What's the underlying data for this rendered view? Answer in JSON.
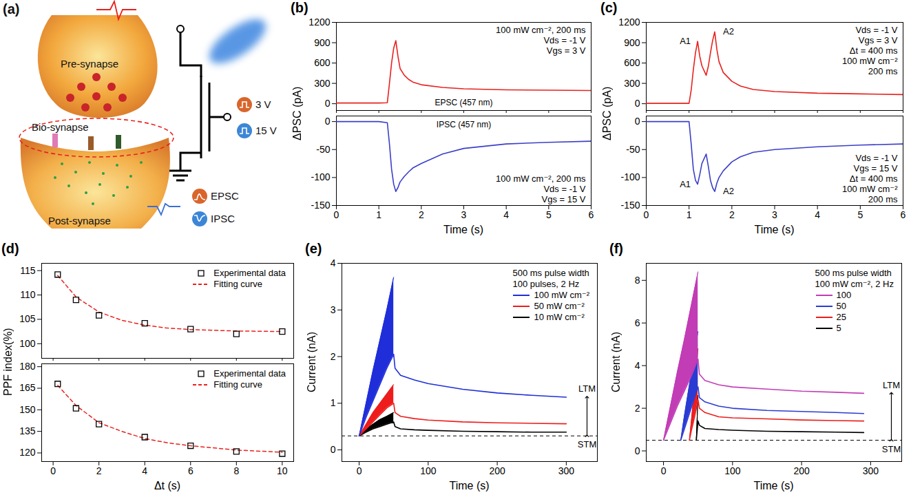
{
  "diagram": {
    "panel": "(a)",
    "labels": {
      "pre_synapse": "Pre-synapse",
      "bio_synapse": "Bio-synapse",
      "post_synapse": "Post-synapse"
    },
    "gate_pulses": [
      "3 V",
      "15 V"
    ],
    "outputs": [
      "EPSC",
      "IPSC"
    ]
  },
  "chart_data": [
    {
      "panel": "(b)",
      "type": "line",
      "xlabel": "Time (s)",
      "ylabel": "ΔPSC (pA)",
      "xlim": [
        0,
        6
      ],
      "xticks": [
        0,
        1,
        2,
        3,
        4,
        5,
        6
      ],
      "subplots": [
        {
          "type": "line",
          "color": "#e8211d",
          "tick_labels": "y",
          "ylim": [
            -100,
            1200
          ],
          "yticks": [
            0,
            300,
            600,
            900,
            1200
          ],
          "x": [
            0,
            0.5,
            1.0,
            1.2,
            1.25,
            1.3,
            1.35,
            1.4,
            1.45,
            1.5,
            1.6,
            1.7,
            1.8,
            2.0,
            2.5,
            3,
            4,
            5,
            6
          ],
          "values": [
            10,
            10,
            10,
            15,
            300,
            600,
            820,
            930,
            700,
            520,
            420,
            360,
            320,
            280,
            240,
            220,
            205,
            200,
            195
          ],
          "trace_label": "EPSC (457 nm)",
          "annotations": [
            "100 mW cm⁻², 200 ms",
            "Vds = -1 V",
            "Vgs = 3 V"
          ]
        },
        {
          "type": "line",
          "color": "#3b3fc7",
          "ylim": [
            -150,
            10
          ],
          "yticks": [
            -150,
            -100,
            -50,
            0
          ],
          "x": [
            0,
            0.5,
            1.0,
            1.2,
            1.25,
            1.3,
            1.35,
            1.4,
            1.45,
            1.5,
            1.6,
            1.7,
            1.8,
            2.0,
            2.5,
            3,
            4,
            5,
            6
          ],
          "values": [
            0,
            0,
            0,
            -2,
            -40,
            -85,
            -112,
            -125,
            -118,
            -108,
            -98,
            -90,
            -83,
            -75,
            -58,
            -48,
            -40,
            -37,
            -35
          ],
          "trace_label": "IPSC (457 nm)",
          "annotations": [
            "100 mW cm⁻², 200 ms",
            "Vds = -1 V",
            "Vgs = 15 V"
          ]
        }
      ]
    },
    {
      "panel": "(c)",
      "type": "line",
      "xlabel": "Time (s)",
      "ylabel": "ΔPSC (pA)",
      "xlim": [
        0,
        6
      ],
      "xticks": [
        0,
        1,
        2,
        3,
        4,
        5,
        6
      ],
      "subplots": [
        {
          "type": "line",
          "color": "#e8211d",
          "tick_labels": "y",
          "ylim": [
            -100,
            1200
          ],
          "yticks": [
            0,
            300,
            600,
            900,
            1200
          ],
          "x": [
            0,
            0.5,
            1.0,
            1.05,
            1.1,
            1.15,
            1.2,
            1.25,
            1.3,
            1.4,
            1.45,
            1.5,
            1.55,
            1.6,
            1.65,
            1.7,
            1.8,
            2.0,
            2.2,
            2.5,
            3,
            4,
            5,
            6
          ],
          "values": [
            5,
            5,
            5,
            200,
            500,
            750,
            920,
            700,
            560,
            420,
            550,
            750,
            930,
            1060,
            800,
            620,
            460,
            330,
            260,
            210,
            180,
            155,
            145,
            135
          ],
          "peak_labels": [
            "A1",
            "A2"
          ],
          "annotations": [
            "Vds = -1 V",
            "Vgs = 3 V",
            "Δt = 400 ms",
            "100 mW cm⁻²",
            "200 ms"
          ]
        },
        {
          "type": "line",
          "color": "#3b3fc7",
          "ylim": [
            -150,
            10
          ],
          "yticks": [
            -150,
            -100,
            -50,
            0
          ],
          "x": [
            0,
            0.5,
            1.0,
            1.05,
            1.1,
            1.15,
            1.2,
            1.25,
            1.3,
            1.4,
            1.45,
            1.5,
            1.55,
            1.6,
            1.65,
            1.7,
            1.8,
            2.0,
            2.2,
            2.5,
            3,
            4,
            5,
            6
          ],
          "values": [
            0,
            0,
            0,
            -40,
            -85,
            -105,
            -112,
            -95,
            -75,
            -58,
            -80,
            -105,
            -118,
            -125,
            -110,
            -100,
            -88,
            -72,
            -63,
            -55,
            -50,
            -45,
            -42,
            -40
          ],
          "peak_labels": [
            "A1",
            "A2"
          ],
          "annotations": [
            "Vds = -1 V",
            "Vgs = 15 V",
            "Δt = 400 ms",
            "100 mW cm⁻²",
            "200 ms"
          ]
        }
      ]
    },
    {
      "panel": "(d)",
      "type": "scatter",
      "xlabel": "Δt (s)",
      "ylabel": "PPF index(%)",
      "xlim": [
        -0.5,
        10.5
      ],
      "xticks": [
        0,
        2,
        4,
        6,
        8,
        10
      ],
      "legend": "top-right",
      "subplots": [
        {
          "tick_labels": "y",
          "ylim": [
            97,
            116.5
          ],
          "yticks": [
            100,
            105,
            110,
            115
          ],
          "series": [
            {
              "name": "Experimental data",
              "type": "scatter",
              "marker": "square",
              "color": "#000000",
              "x": [
                0.2,
                1,
                2,
                4,
                6,
                8,
                10
              ],
              "values": [
                114.2,
                109,
                105.8,
                104.2,
                103,
                102,
                102.5
              ]
            },
            {
              "name": "Fitting curve",
              "type": "line",
              "line_style": "dashed",
              "color": "#e8211d",
              "x": [
                0.2,
                1,
                2,
                3,
                4,
                5,
                6,
                8,
                10
              ],
              "values": [
                114,
                109.6,
                106.5,
                104.8,
                103.8,
                103.2,
                102.9,
                102.6,
                102.5
              ]
            }
          ]
        },
        {
          "ylim": [
            114,
            182
          ],
          "yticks": [
            120,
            135,
            150,
            165,
            180
          ],
          "series": [
            {
              "name": "Experimental data",
              "type": "scatter",
              "marker": "square",
              "color": "#000000",
              "x": [
                0.2,
                1,
                2,
                4,
                6,
                8,
                10
              ],
              "values": [
                168,
                151,
                140,
                131,
                125,
                121,
                119.5
              ]
            },
            {
              "name": "Fitting curve",
              "type": "line",
              "line_style": "dashed",
              "color": "#e8211d",
              "x": [
                0.2,
                1,
                2,
                3,
                4,
                5,
                6,
                8,
                10
              ],
              "values": [
                167,
                153,
                141,
                135,
                130,
                127,
                125,
                122,
                120.5
              ]
            }
          ]
        }
      ]
    },
    {
      "panel": "(e)",
      "type": "line",
      "xlabel": "Time (s)",
      "ylabel": "Current (nA)",
      "xlim": [
        -25,
        345
      ],
      "xticks": [
        0,
        100,
        200,
        300
      ],
      "ylim": [
        -0.25,
        4
      ],
      "yticks": [
        0,
        1,
        2,
        3,
        4
      ],
      "legend": "top-right",
      "legend_title": [
        "500 ms pulse width",
        "100 pulses, 2 Hz"
      ],
      "reference_line": 0.3,
      "range_labels": [
        "LTM",
        "STM"
      ],
      "series": [
        {
          "name": "100 mW cm⁻²",
          "color": "#1f2ed9",
          "x": [
            0,
            10,
            20,
            30,
            40,
            50,
            52,
            60,
            80,
            100,
            150,
            200,
            250,
            300
          ],
          "values": [
            0.3,
            0.7,
            1.05,
            1.4,
            1.75,
            2.05,
            1.75,
            1.6,
            1.5,
            1.42,
            1.3,
            1.22,
            1.17,
            1.13
          ],
          "peaks": [
            0.3,
            1.0,
            1.7,
            2.35,
            3.0,
            3.7,
            null,
            null,
            null,
            null,
            null,
            null,
            null,
            null
          ]
        },
        {
          "name": "50 mW cm⁻²",
          "color": "#ee1c1c",
          "x": [
            0,
            10,
            20,
            30,
            40,
            50,
            52,
            60,
            80,
            100,
            150,
            200,
            250,
            300
          ],
          "values": [
            0.3,
            0.45,
            0.6,
            0.75,
            0.9,
            1.0,
            0.8,
            0.72,
            0.67,
            0.64,
            0.6,
            0.58,
            0.57,
            0.56
          ],
          "peaks": [
            0.3,
            0.55,
            0.8,
            1.0,
            1.2,
            1.4,
            null,
            null,
            null,
            null,
            null,
            null,
            null,
            null
          ]
        },
        {
          "name": "10 mW cm⁻²",
          "color": "#000000",
          "x": [
            0,
            10,
            20,
            30,
            40,
            50,
            52,
            60,
            80,
            100,
            150,
            200,
            250,
            300
          ],
          "values": [
            0.3,
            0.38,
            0.45,
            0.5,
            0.55,
            0.6,
            0.5,
            0.45,
            0.43,
            0.42,
            0.4,
            0.39,
            0.38,
            0.38
          ],
          "peaks": [
            0.3,
            0.45,
            0.55,
            0.65,
            0.72,
            0.8,
            null,
            null,
            null,
            null,
            null,
            null,
            null,
            null
          ]
        }
      ]
    },
    {
      "panel": "(f)",
      "type": "line",
      "xlabel": "Time (s)",
      "ylabel": "Current (nA)",
      "xlim": [
        -25,
        345
      ],
      "xticks": [
        0,
        100,
        200,
        300
      ],
      "ylim": [
        -0.5,
        8.8
      ],
      "yticks": [
        0,
        2,
        4,
        6,
        8
      ],
      "legend": "top-right",
      "legend_title": [
        "500 ms pulse width",
        "100 mW cm⁻², 2 Hz"
      ],
      "reference_line": 0.5,
      "range_labels": [
        "LTM",
        "STM"
      ],
      "series": [
        {
          "name": "100",
          "color": "#c23cb6",
          "x": [
            0,
            10,
            20,
            30,
            40,
            50,
            52,
            60,
            80,
            100,
            150,
            200,
            250,
            290
          ],
          "values": [
            0.5,
            1.3,
            2.1,
            2.8,
            3.5,
            4.3,
            3.6,
            3.3,
            3.1,
            3.0,
            2.9,
            2.8,
            2.75,
            2.7
          ],
          "peaks": [
            0.5,
            2.1,
            3.7,
            5.2,
            6.8,
            8.4,
            null,
            null,
            null,
            null,
            null,
            null,
            null,
            null
          ]
        },
        {
          "name": "50",
          "color": "#2a3bd4",
          "x": [
            25,
            30,
            35,
            40,
            45,
            50,
            52,
            60,
            80,
            100,
            150,
            200,
            250,
            290
          ],
          "values": [
            0.5,
            1.0,
            1.5,
            2.0,
            2.5,
            3.0,
            2.5,
            2.3,
            2.1,
            2.0,
            1.9,
            1.85,
            1.8,
            1.75
          ],
          "peaks": [
            0.5,
            1.6,
            2.6,
            3.6,
            4.6,
            5.6,
            null,
            null,
            null,
            null,
            null,
            null,
            null,
            null
          ]
        },
        {
          "name": "25",
          "color": "#ee1c1c",
          "x": [
            37.5,
            40,
            45,
            50,
            52,
            60,
            80,
            100,
            150,
            200,
            250,
            290
          ],
          "values": [
            0.5,
            0.9,
            1.6,
            2.4,
            2.0,
            1.8,
            1.6,
            1.55,
            1.5,
            1.45,
            1.42,
            1.4
          ],
          "peaks": [
            0.5,
            1.3,
            3.0,
            4.8,
            null,
            null,
            null,
            null,
            null,
            null,
            null,
            null
          ]
        },
        {
          "name": "5",
          "color": "#000000",
          "x": [
            47.5,
            50,
            52,
            60,
            80,
            100,
            150,
            200,
            250,
            290
          ],
          "values": [
            0.5,
            1.4,
            1.2,
            1.05,
            1.0,
            0.97,
            0.92,
            0.9,
            0.88,
            0.86
          ],
          "peaks": [
            0.5,
            2.6,
            null,
            null,
            null,
            null,
            null,
            null,
            null,
            null
          ]
        }
      ]
    }
  ]
}
